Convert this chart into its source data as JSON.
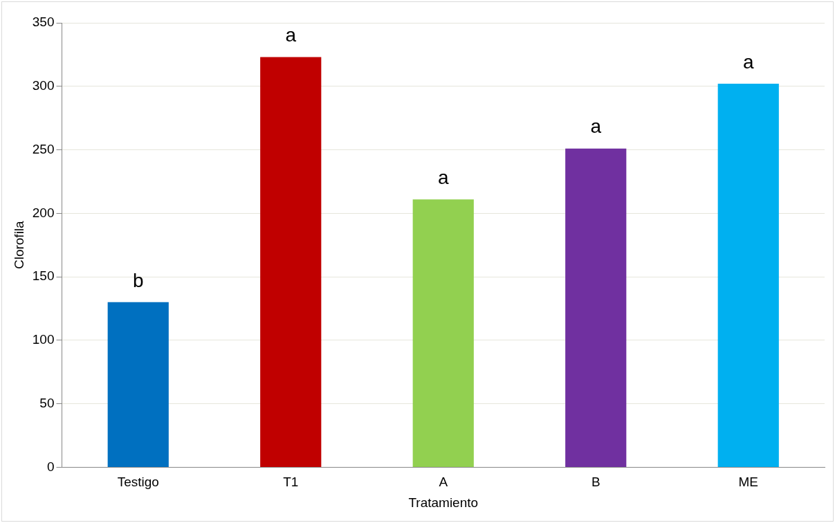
{
  "chart_data": {
    "type": "bar",
    "xlabel": "Tratamiento",
    "ylabel": "Clorofila",
    "categories": [
      "Testigo",
      "T1",
      "A",
      "B",
      "ME"
    ],
    "values": [
      130,
      323,
      211,
      251,
      302
    ],
    "colors": [
      "#0070c0",
      "#c00000",
      "#92d050",
      "#7030a0",
      "#00b0f0"
    ],
    "ylim": [
      0,
      350
    ],
    "yticks": [
      0,
      50,
      100,
      150,
      200,
      250,
      300,
      350
    ],
    "grid": "y",
    "legend": false,
    "annotations": [
      {
        "text": "b",
        "x": "Testigo",
        "y": 130
      },
      {
        "text": "a",
        "x": "T1",
        "y": 323
      },
      {
        "text": "a",
        "x": "A",
        "y": 211
      },
      {
        "text": "a",
        "x": "B",
        "y": 251
      },
      {
        "text": "a",
        "x": "ME",
        "y": 302
      }
    ]
  }
}
